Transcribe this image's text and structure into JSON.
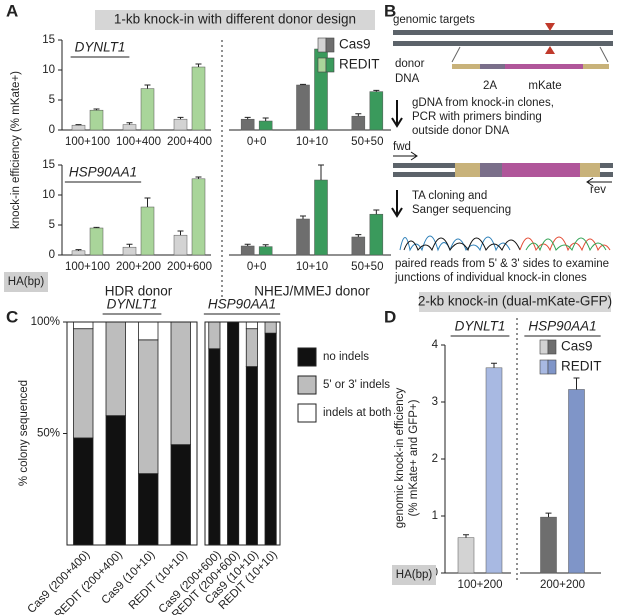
{
  "panel_labels": [
    "A",
    "B",
    "C",
    "D"
  ],
  "chart_data": [
    {
      "type": "bar",
      "title": "1-kb knock-in with different donor design",
      "gene": "DYNLT1",
      "ylabel": "knock-in efficiency (% mKate+)",
      "groups": [
        {
          "categories": [
            "100+100",
            "100+400",
            "200+400"
          ]
        },
        {
          "categories": [
            "0+0",
            "10+10",
            "50+50"
          ]
        }
      ],
      "series": [
        {
          "name": "Cas9",
          "colors": [
            "#d3d3d3",
            "#6e6e6e"
          ],
          "values": [
            0.8,
            0.9,
            1.8,
            1.8,
            7.5,
            2.3
          ],
          "errors": [
            0.1,
            0.3,
            0.3,
            0.3,
            0.1,
            0.4
          ]
        },
        {
          "name": "REDIT",
          "colors": [
            "#a9d59a",
            "#3a9a5c"
          ],
          "values": [
            3.3,
            6.9,
            10.5,
            1.5,
            13.5,
            6.4
          ],
          "errors": [
            0.2,
            0.6,
            0.5,
            0.5,
            0.2,
            0.2
          ]
        }
      ],
      "ylim": [
        0,
        15
      ],
      "yticks": [
        0,
        5,
        10,
        15
      ]
    },
    {
      "type": "bar",
      "gene": "HSP90AA1",
      "x_title": "HA(bp)",
      "groups": [
        {
          "name": "HDR donor",
          "categories": [
            "100+100",
            "200+200",
            "200+600"
          ]
        },
        {
          "name": "NHEJ/MMEJ donor",
          "categories": [
            "0+0",
            "10+10",
            "50+50"
          ]
        }
      ],
      "series": [
        {
          "colors": [
            "#d3d3d3",
            "#6e6e6e"
          ],
          "values": [
            0.7,
            1.3,
            3.3,
            1.5,
            6.0,
            3.0
          ],
          "errors": [
            0.2,
            0.5,
            0.7,
            0.3,
            0.5,
            0.4
          ]
        },
        {
          "colors": [
            "#a9d59a",
            "#3a9a5c"
          ],
          "values": [
            4.5,
            8.0,
            12.7,
            1.4,
            12.5,
            6.8
          ],
          "errors": [
            0.1,
            1.5,
            0.3,
            0.3,
            2.5,
            0.7
          ]
        }
      ],
      "ylim": [
        0,
        15
      ],
      "yticks": [
        0,
        5,
        10,
        15
      ]
    },
    {
      "type": "stacked_bar",
      "gene": "DYNLT1",
      "ylabel": "% colony sequenced",
      "categories": [
        "Cas9 (200+400)",
        "REDIT (200+400)",
        "Cas9 (10+10)",
        "REDIT (10+10)"
      ],
      "series": [
        {
          "color": "#111111",
          "values": [
            48,
            58,
            32,
            45
          ]
        },
        {
          "color": "#bdbdbd",
          "values": [
            49,
            42,
            60,
            55
          ]
        },
        {
          "color": "#ffffff",
          "values": [
            3,
            0,
            8,
            0
          ]
        }
      ],
      "ylim": [
        0,
        100
      ],
      "yticks": [
        {
          "value": 50,
          "label": "50%"
        },
        {
          "value": 100,
          "label": "100%"
        }
      ]
    },
    {
      "type": "stacked_bar",
      "gene": "HSP90AA1",
      "categories": [
        "Cas9 (200+600)",
        "REDIT (200+600)",
        "Cas9 (10+10)",
        "REDIT (10+10)"
      ],
      "series": [
        {
          "name": "no indels",
          "color": "#111111",
          "values": [
            88,
            100,
            80,
            95
          ]
        },
        {
          "name": "5' or 3' indels",
          "color": "#bdbdbd",
          "values": [
            12,
            0,
            17,
            5
          ]
        },
        {
          "name": "indels at both",
          "color": "#ffffff",
          "values": [
            0,
            0,
            3,
            0
          ]
        }
      ],
      "ylim": [
        0,
        100
      ]
    },
    {
      "type": "bar",
      "title": "2-kb knock-in (dual-mKate-GFP)",
      "x_title": "HA(bp)",
      "ylabel": [
        "genomic knock-in efficiency",
        "(% mKate+ and GFP+)"
      ],
      "groups": [
        {
          "gene": "DYNLT1",
          "categories": [
            "100+200"
          ]
        },
        {
          "gene": "HSP90AA1",
          "categories": [
            "200+200"
          ]
        }
      ],
      "series": [
        {
          "name": "Cas9",
          "colors": [
            "#d3d3d3",
            "#6e6e6e"
          ],
          "values": [
            0.62,
            0.98
          ],
          "errors": [
            0.05,
            0.07
          ]
        },
        {
          "name": "REDIT",
          "colors": [
            "#a8b9e2",
            "#7f95c8"
          ],
          "values": [
            3.6,
            3.22
          ],
          "errors": [
            0.08,
            0.2
          ]
        }
      ],
      "ylim": [
        0,
        4
      ],
      "yticks": [
        0,
        1,
        2,
        3,
        4
      ]
    }
  ],
  "diagram": {
    "genomic_targets": "genomic targets",
    "donor": [
      "donor",
      "DNA"
    ],
    "segment_2a": "2A",
    "segment_mkate": "mKate",
    "step1": [
      "gDNA from knock-in clones,",
      "PCR with primers binding",
      "outside donor DNA"
    ],
    "fwd": "fwd",
    "rev": "rev",
    "step2": [
      "TA cloning and",
      "Sanger sequencing"
    ],
    "result": [
      "paired reads from 5' & 3' sides to examine",
      "junctions of individual knock-in clones"
    ]
  }
}
